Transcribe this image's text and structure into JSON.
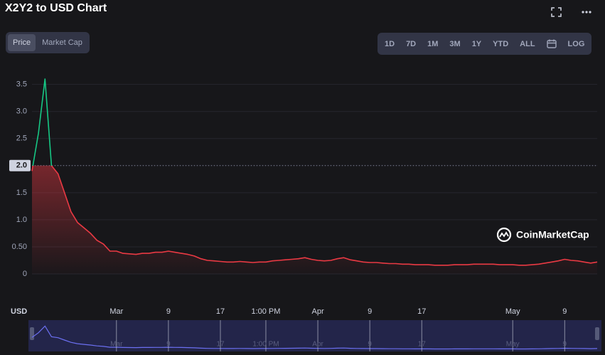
{
  "chart_data": {
    "type": "line",
    "title": "X2Y2 to USD Chart",
    "currency_label": "USD",
    "watermark": "CoinMarketCap",
    "controls": {
      "toggle": [
        "Price",
        "Market Cap"
      ],
      "ranges": [
        "1D",
        "7D",
        "1M",
        "3M",
        "1Y",
        "YTD",
        "ALL"
      ],
      "log": "LOG"
    },
    "x": [
      null,
      null,
      null,
      null,
      null,
      null,
      null,
      null,
      null,
      null,
      null,
      null,
      null,
      "Mar",
      null,
      null,
      null,
      null,
      null,
      null,
      null,
      "9",
      null,
      null,
      null,
      null,
      null,
      null,
      null,
      "17",
      null,
      null,
      null,
      null,
      null,
      null,
      "1:00 PM",
      null,
      null,
      null,
      null,
      null,
      null,
      null,
      "Apr",
      null,
      null,
      null,
      null,
      null,
      null,
      null,
      "9",
      null,
      null,
      null,
      null,
      null,
      null,
      null,
      "17",
      null,
      null,
      null,
      null,
      null,
      null,
      null,
      null,
      null,
      null,
      null,
      null,
      null,
      "May",
      null,
      null,
      null,
      null,
      null,
      null,
      null,
      "9",
      null,
      null,
      null,
      null,
      null
    ],
    "series": [
      {
        "name": "Price",
        "color": "#ea3943",
        "color_above": "#16c784",
        "values": [
          1.9,
          2.6,
          3.6,
          2.0,
          1.85,
          1.5,
          1.15,
          0.95,
          0.85,
          0.75,
          0.62,
          0.55,
          0.42,
          0.42,
          0.38,
          0.37,
          0.36,
          0.38,
          0.38,
          0.4,
          0.4,
          0.42,
          0.4,
          0.38,
          0.36,
          0.33,
          0.28,
          0.25,
          0.24,
          0.23,
          0.22,
          0.22,
          0.23,
          0.22,
          0.21,
          0.22,
          0.22,
          0.24,
          0.25,
          0.26,
          0.27,
          0.28,
          0.3,
          0.27,
          0.25,
          0.24,
          0.25,
          0.28,
          0.3,
          0.26,
          0.24,
          0.22,
          0.21,
          0.21,
          0.2,
          0.19,
          0.19,
          0.18,
          0.18,
          0.17,
          0.17,
          0.17,
          0.16,
          0.16,
          0.16,
          0.17,
          0.17,
          0.17,
          0.18,
          0.18,
          0.18,
          0.18,
          0.17,
          0.17,
          0.17,
          0.16,
          0.16,
          0.17,
          0.18,
          0.2,
          0.22,
          0.24,
          0.27,
          0.25,
          0.24,
          0.22,
          0.2,
          0.22
        ]
      }
    ],
    "baseline": 2,
    "ylim": [
      0,
      3.85
    ],
    "yticks": [
      0,
      {
        "value": 0.5,
        "label": "0.50"
      },
      {
        "value": 1,
        "label": "1.0"
      },
      1.5,
      {
        "value": 2,
        "label": "2.0"
      },
      2.5,
      {
        "value": 3,
        "label": "3.0"
      },
      3.5
    ],
    "grid": true
  }
}
